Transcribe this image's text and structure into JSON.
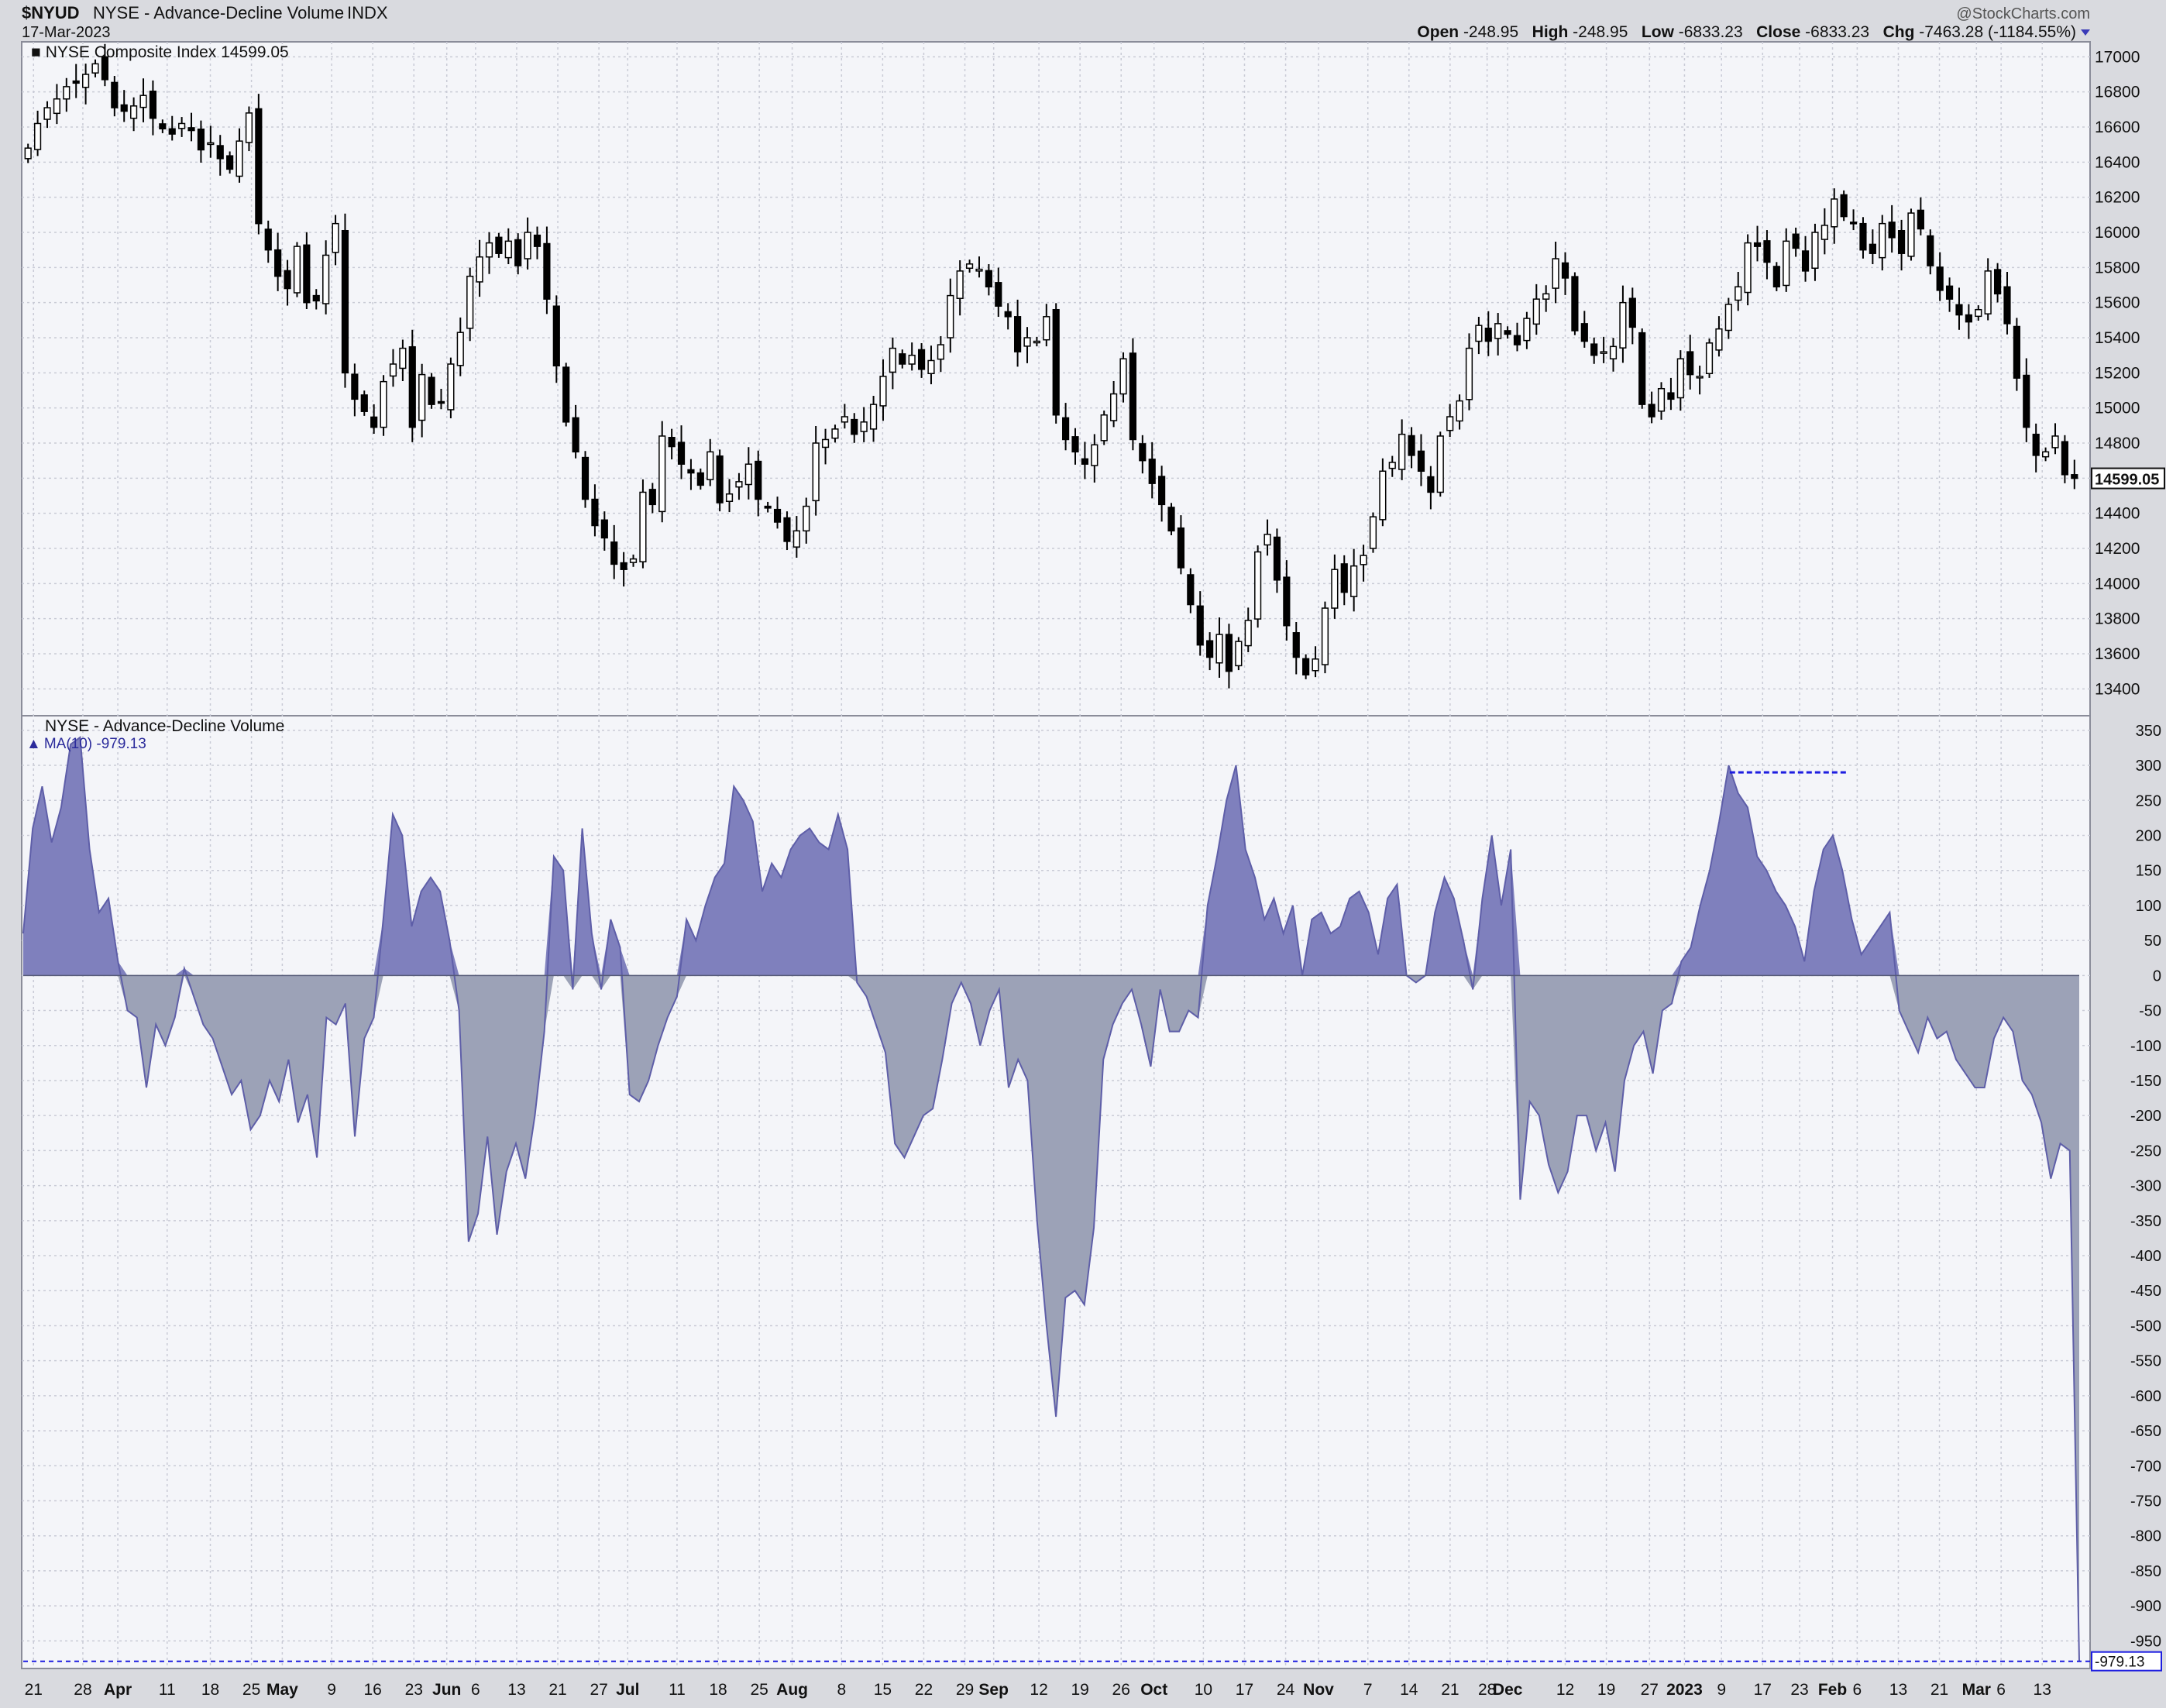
{
  "header": {
    "symbol": "$NYUD",
    "name": "NYSE - Advance-Decline Volume",
    "exchange": "INDX",
    "date": "17-Mar-2023",
    "watermark": "@StockCharts.com",
    "ohlc_text": "Open -248.95  High -248.95  Low -6833.23  Close -6833.23  Chg -7463.28 (-1184.55%)",
    "ohlc": [
      {
        "label": "Open",
        "value": "-248.95"
      },
      {
        "label": "High",
        "value": "-248.95"
      },
      {
        "label": "Low",
        "value": "-6833.23"
      },
      {
        "label": "Close",
        "value": "-6833.23"
      },
      {
        "label": "Chg",
        "value": "-7463.28 (-1184.55%)"
      }
    ]
  },
  "colors": {
    "background": "#d9dadf",
    "plot_bg": "#f4f5f9",
    "grid": "#c9cbd6",
    "candle": "#000000",
    "area_positive": "#7f80bd",
    "area_negative": "#9ca2b7",
    "area_line": "#5e5ea8",
    "marker": "#1d1de0"
  },
  "chart_data": [
    {
      "type": "candlestick",
      "title": "NYSE Composite Index 14599.05",
      "last_value": "14599.05",
      "ylim": [
        13300,
        17050
      ],
      "yticks": [
        13400,
        13600,
        13800,
        14000,
        14200,
        14400,
        14600,
        14800,
        15000,
        15200,
        15400,
        15600,
        15800,
        16000,
        16200,
        16400,
        16600,
        16800,
        17000
      ],
      "date_range": [
        "2022-03-21",
        "2023-03-17"
      ],
      "closes": [
        16480,
        16620,
        16710,
        16760,
        16830,
        16850,
        16900,
        16960,
        16870,
        16710,
        16690,
        16720,
        16780,
        16650,
        16590,
        16560,
        16620,
        16580,
        16470,
        16510,
        16420,
        16360,
        16520,
        16680,
        16050,
        15900,
        15750,
        15680,
        15920,
        15600,
        15610,
        15870,
        16050,
        15200,
        15050,
        14980,
        14890,
        15150,
        15250,
        15340,
        14890,
        15190,
        15020,
        15030,
        15250,
        15430,
        15750,
        15860,
        15940,
        15880,
        15950,
        15810,
        16000,
        15920,
        15620,
        15240,
        14920,
        14750,
        14480,
        14330,
        14260,
        14110,
        14080,
        14140,
        14520,
        14450,
        14840,
        14780,
        14680,
        14630,
        14560,
        14750,
        14460,
        14510,
        14580,
        14680,
        14480,
        14430,
        14350,
        14240,
        14300,
        14440,
        14800,
        14820,
        14880,
        14950,
        14850,
        14920,
        15020,
        15180,
        15340,
        15250,
        15300,
        15220,
        15270,
        15360,
        15640,
        15780,
        15820,
        15790,
        15690,
        15580,
        15520,
        15320,
        15400,
        15380,
        15520,
        14960,
        14820,
        14750,
        14680,
        14790,
        14960,
        15080,
        15280,
        14820,
        14700,
        14570,
        14450,
        14300,
        14090,
        13880,
        13650,
        13580,
        13710,
        13500,
        13670,
        13790,
        14180,
        14280,
        14020,
        13760,
        13580,
        13480,
        13570,
        13860,
        14080,
        13950,
        14100,
        14160,
        14380,
        14640,
        14690,
        14850,
        14730,
        14640,
        14520,
        14840,
        14950,
        15040,
        15340,
        15470,
        15380,
        15480,
        15420,
        15360,
        15510,
        15620,
        15650,
        15850,
        15740,
        15440,
        15380,
        15300,
        15320,
        15350,
        15600,
        15460,
        15020,
        14950,
        15110,
        15050,
        15280,
        15190,
        15180,
        15370,
        15450,
        15590,
        15690,
        15940,
        15920,
        15830,
        15690,
        15950,
        15910,
        15780,
        16000,
        16040,
        16190,
        16090,
        16050,
        15900,
        15880,
        16050,
        15970,
        15880,
        16110,
        16020,
        15810,
        15670,
        15620,
        15530,
        15490,
        15560,
        15780,
        15650,
        15480,
        15170,
        14890,
        14730,
        14750,
        14840,
        14620,
        14599.05
      ],
      "month_labels": [
        {
          "label": "21",
          "pos": 0.005
        },
        {
          "label": "28",
          "pos": 0.029
        },
        {
          "label": "Apr",
          "pos": 0.046
        },
        {
          "label": "11",
          "pos": 0.07
        },
        {
          "label": "18",
          "pos": 0.091
        },
        {
          "label": "25",
          "pos": 0.111
        },
        {
          "label": "May",
          "pos": 0.126
        },
        {
          "label": "9",
          "pos": 0.15
        },
        {
          "label": "16",
          "pos": 0.17
        },
        {
          "label": "23",
          "pos": 0.19
        },
        {
          "label": "Jun",
          "pos": 0.206
        },
        {
          "label": "6",
          "pos": 0.22
        },
        {
          "label": "13",
          "pos": 0.24
        },
        {
          "label": "21",
          "pos": 0.26
        },
        {
          "label": "27",
          "pos": 0.28
        },
        {
          "label": "Jul",
          "pos": 0.294
        },
        {
          "label": "11",
          "pos": 0.318
        },
        {
          "label": "18",
          "pos": 0.338
        },
        {
          "label": "25",
          "pos": 0.358
        },
        {
          "label": "Aug",
          "pos": 0.374
        },
        {
          "label": "8",
          "pos": 0.398
        },
        {
          "label": "15",
          "pos": 0.418
        },
        {
          "label": "22",
          "pos": 0.438
        },
        {
          "label": "29",
          "pos": 0.458
        },
        {
          "label": "Sep",
          "pos": 0.472
        },
        {
          "label": "12",
          "pos": 0.494
        },
        {
          "label": "19",
          "pos": 0.514
        },
        {
          "label": "26",
          "pos": 0.534
        },
        {
          "label": "Oct",
          "pos": 0.55
        },
        {
          "label": "10",
          "pos": 0.574
        },
        {
          "label": "17",
          "pos": 0.594
        },
        {
          "label": "24",
          "pos": 0.614
        },
        {
          "label": "Nov",
          "pos": 0.63
        },
        {
          "label": "7",
          "pos": 0.654
        },
        {
          "label": "14",
          "pos": 0.674
        },
        {
          "label": "21",
          "pos": 0.694
        },
        {
          "label": "28",
          "pos": 0.712
        },
        {
          "label": "Dec",
          "pos": 0.722
        },
        {
          "label": "12",
          "pos": 0.75
        },
        {
          "label": "19",
          "pos": 0.77
        },
        {
          "label": "27",
          "pos": 0.791
        },
        {
          "label": "2023",
          "pos": 0.808
        },
        {
          "label": "9",
          "pos": 0.826
        },
        {
          "label": "17",
          "pos": 0.846
        },
        {
          "label": "23",
          "pos": 0.864
        },
        {
          "label": "Feb",
          "pos": 0.88
        },
        {
          "label": "6",
          "pos": 0.892
        },
        {
          "label": "13",
          "pos": 0.912
        },
        {
          "label": "21",
          "pos": 0.932
        },
        {
          "label": "Mar",
          "pos": 0.95
        },
        {
          "label": "6",
          "pos": 0.962
        },
        {
          "label": "13",
          "pos": 0.982
        }
      ]
    },
    {
      "type": "area",
      "title": "NYSE - Advance-Decline Volume",
      "legend": "MA(10) -979.13",
      "last_value": "-979.13",
      "ylim": [
        -985,
        362
      ],
      "yticks": [
        350,
        300,
        250,
        200,
        150,
        100,
        50,
        0,
        -50,
        -100,
        -150,
        -200,
        -250,
        -300,
        -350,
        -400,
        -450,
        -500,
        -550,
        -600,
        -650,
        -700,
        -750,
        -800,
        -850,
        -900,
        -950
      ],
      "values": [
        60,
        210,
        270,
        190,
        240,
        330,
        340,
        180,
        90,
        110,
        20,
        -50,
        -60,
        -160,
        -70,
        -100,
        -60,
        10,
        -30,
        -70,
        -90,
        -130,
        -170,
        -150,
        -220,
        -200,
        -150,
        -180,
        -120,
        -210,
        -170,
        -260,
        -60,
        -70,
        -40,
        -230,
        -90,
        -60,
        80,
        230,
        200,
        70,
        120,
        140,
        120,
        50,
        -50,
        -380,
        -340,
        -230,
        -370,
        -280,
        -240,
        -290,
        -200,
        -80,
        170,
        150,
        -20,
        210,
        60,
        -20,
        80,
        40,
        -170,
        -180,
        -150,
        -100,
        -60,
        -30,
        80,
        50,
        100,
        140,
        160,
        270,
        250,
        220,
        120,
        160,
        140,
        180,
        200,
        210,
        190,
        180,
        230,
        180,
        -10,
        -30,
        -70,
        -110,
        -240,
        -260,
        -230,
        -200,
        -190,
        -120,
        -40,
        -10,
        -40,
        -100,
        -50,
        -20,
        -160,
        -120,
        -150,
        -350,
        -500,
        -630,
        -460,
        -450,
        -470,
        -360,
        -120,
        -70,
        -40,
        -20,
        -70,
        -130,
        -20,
        -80,
        -80,
        -50,
        -60,
        100,
        170,
        250,
        300,
        180,
        140,
        80,
        110,
        60,
        100,
        0,
        80,
        90,
        60,
        70,
        110,
        120,
        90,
        30,
        110,
        130,
        0,
        -10,
        0,
        90,
        140,
        110,
        50,
        -20,
        110,
        200,
        100,
        180,
        -320,
        -180,
        -200,
        -270,
        -310,
        -280,
        -200,
        -200,
        -250,
        -210,
        -280,
        -150,
        -100,
        -80,
        -140,
        -50,
        -40,
        20,
        40,
        100,
        150,
        220,
        300,
        260,
        240,
        170,
        150,
        120,
        100,
        70,
        20,
        120,
        180,
        200,
        150,
        80,
        30,
        50,
        70,
        90,
        -50,
        -80,
        -110,
        -60,
        -90,
        -80,
        -120,
        -140,
        -160,
        -160,
        -90,
        -60,
        -80,
        -150,
        -170,
        -210,
        -290,
        -240,
        -250,
        -979.13
      ],
      "resistance_level": 290,
      "resistance_range": [
        0.83,
        0.888
      ]
    }
  ]
}
